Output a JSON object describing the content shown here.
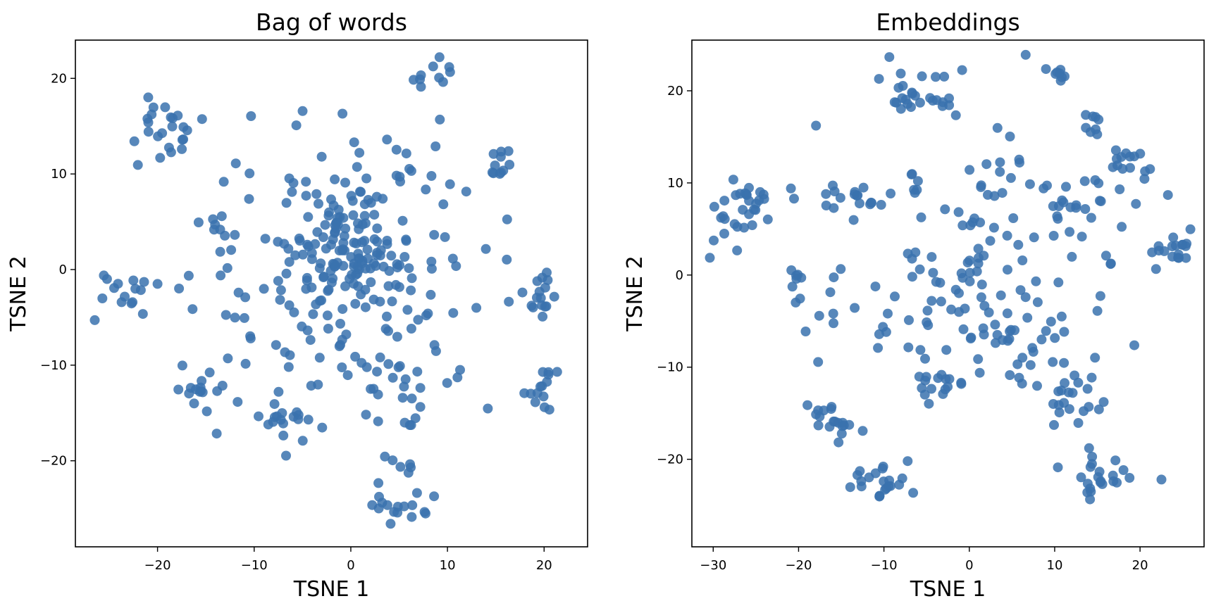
{
  "point_color": "#3a72ae",
  "chart_data": [
    {
      "type": "scatter",
      "title": "Bag of words",
      "xlabel": "TSNE 1",
      "ylabel": "TSNE 2",
      "xlim": [
        -28.5,
        24.5
      ],
      "ylim": [
        -29,
        24
      ],
      "xticks": [
        -20,
        -10,
        0,
        10,
        20
      ],
      "yticks": [
        -20,
        -10,
        0,
        10,
        20
      ],
      "grid": false,
      "clusters": [
        {
          "center": [
            -19.5,
            14.5
          ],
          "spread": [
            2.2,
            2.0
          ],
          "count": 24
        },
        {
          "center": [
            8.5,
            20.0
          ],
          "spread": [
            1.4,
            0.9
          ],
          "count": 10
        },
        {
          "center": [
            15.5,
            10.8
          ],
          "spread": [
            1.0,
            0.9
          ],
          "count": 10
        },
        {
          "center": [
            -23.5,
            -1.7
          ],
          "spread": [
            1.5,
            1.3
          ],
          "count": 16
        },
        {
          "center": [
            19.7,
            -2.5
          ],
          "spread": [
            1.4,
            1.6
          ],
          "count": 16
        },
        {
          "center": [
            20.0,
            -12.0
          ],
          "spread": [
            1.0,
            1.0
          ],
          "count": 14
        },
        {
          "center": [
            -15.2,
            -12.8
          ],
          "spread": [
            1.1,
            1.0
          ],
          "count": 14
        },
        {
          "center": [
            5.8,
            -25.0
          ],
          "spread": [
            1.8,
            0.8
          ],
          "count": 16
        },
        {
          "center": [
            5.2,
            -20.5
          ],
          "spread": [
            0.9,
            0.9
          ],
          "count": 6
        },
        {
          "center": [
            -6.5,
            -15.8
          ],
          "spread": [
            1.8,
            1.1
          ],
          "count": 16
        },
        {
          "center": [
            5.0,
            -13.0
          ],
          "spread": [
            2.0,
            1.2
          ],
          "count": 14
        },
        {
          "center": [
            -14.3,
            5.0
          ],
          "spread": [
            0.9,
            1.0
          ],
          "count": 8
        },
        {
          "center": [
            0.0,
            1.5
          ],
          "spread": [
            2.6,
            2.6
          ],
          "count": 70
        },
        {
          "center": [
            0.0,
            0.0
          ],
          "spread": [
            7.5,
            7.5
          ],
          "count": 200
        }
      ]
    },
    {
      "type": "scatter",
      "title": "Embeddings",
      "xlabel": "TSNE 1",
      "ylabel": "TSNE 2",
      "xlim": [
        -32.5,
        27.5
      ],
      "ylim": [
        -29.5,
        25.5
      ],
      "xticks": [
        -30,
        -20,
        -10,
        0,
        10,
        20
      ],
      "yticks": [
        -20,
        -10,
        0,
        10,
        20
      ],
      "grid": false,
      "clusters": [
        {
          "center": [
            -26.5,
            6.5
          ],
          "spread": [
            1.8,
            1.8
          ],
          "count": 32
        },
        {
          "center": [
            -5.5,
            20.0
          ],
          "spread": [
            2.2,
            1.4
          ],
          "count": 26
        },
        {
          "center": [
            10.2,
            22.0
          ],
          "spread": [
            0.9,
            0.7
          ],
          "count": 8
        },
        {
          "center": [
            19.5,
            11.5
          ],
          "spread": [
            1.5,
            1.5
          ],
          "count": 16
        },
        {
          "center": [
            15.0,
            16.5
          ],
          "spread": [
            1.0,
            0.7
          ],
          "count": 8
        },
        {
          "center": [
            23.5,
            2.5
          ],
          "spread": [
            1.2,
            1.0
          ],
          "count": 18
        },
        {
          "center": [
            -16.0,
            -15.8
          ],
          "spread": [
            1.6,
            1.2
          ],
          "count": 18
        },
        {
          "center": [
            -10.5,
            -23.0
          ],
          "spread": [
            1.6,
            1.1
          ],
          "count": 22
        },
        {
          "center": [
            15.5,
            -22.0
          ],
          "spread": [
            2.3,
            1.5
          ],
          "count": 22
        },
        {
          "center": [
            12.0,
            -13.0
          ],
          "spread": [
            1.7,
            1.7
          ],
          "count": 22
        },
        {
          "center": [
            -3.5,
            -11.8
          ],
          "spread": [
            1.3,
            1.0
          ],
          "count": 14
        },
        {
          "center": [
            -14.0,
            8.3
          ],
          "spread": [
            1.8,
            0.9
          ],
          "count": 16
        },
        {
          "center": [
            -20.5,
            -1.0
          ],
          "spread": [
            0.7,
            1.1
          ],
          "count": 8
        },
        {
          "center": [
            12.0,
            7.5
          ],
          "spread": [
            1.6,
            1.3
          ],
          "count": 14
        },
        {
          "center": [
            0.0,
            0.0
          ],
          "spread": [
            9.0,
            8.5
          ],
          "count": 160
        }
      ]
    }
  ]
}
